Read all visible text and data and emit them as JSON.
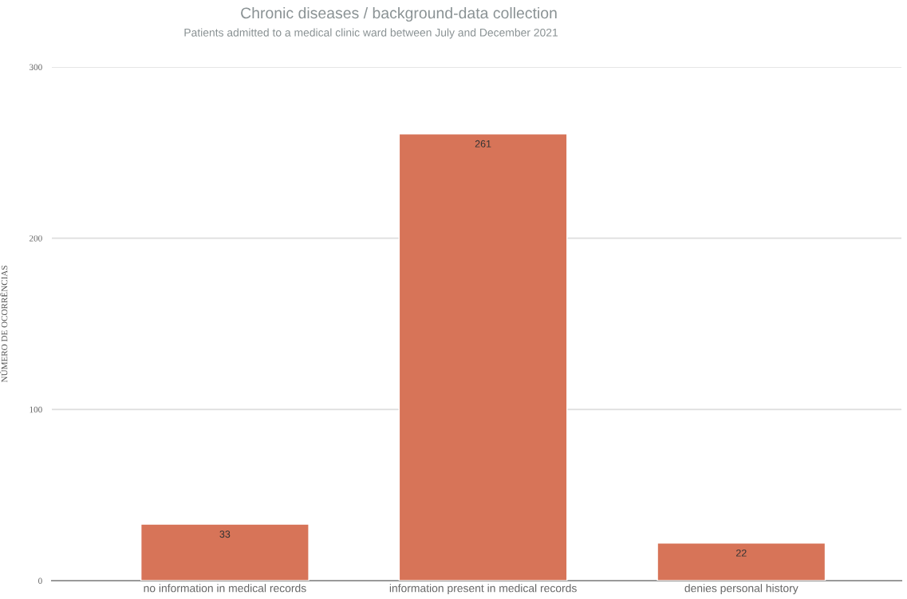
{
  "chart_data": {
    "type": "bar",
    "title": "Chronic diseases / background-data collection",
    "subtitle": "Patients admitted to a medical clinic ward between July and December 2021",
    "ylabel": "NÚMERO DE OCORRÊNCIAS",
    "categories": [
      "no information in medical records",
      "information present in medical records",
      "denies personal history"
    ],
    "values": [
      33,
      261,
      22
    ],
    "color": "#d77458",
    "ylim": [
      0,
      300
    ],
    "yticks": [
      0,
      100,
      200,
      300
    ],
    "grid": "y",
    "data_labels": true
  }
}
